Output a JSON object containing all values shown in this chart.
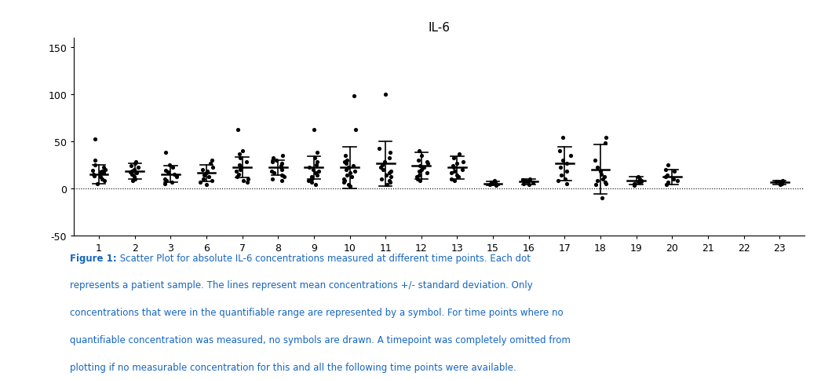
{
  "title": "IL-6",
  "x_labels": [
    "1",
    "2",
    "3",
    "6",
    "7",
    "8",
    "9",
    "10",
    "11",
    "12",
    "13",
    "15",
    "16",
    "17",
    "18",
    "19",
    "20",
    "21",
    "22",
    "23"
  ],
  "ylim": [
    -50,
    160
  ],
  "yticks": [
    -50,
    0,
    50,
    100,
    150
  ],
  "background_color": "#ffffff",
  "dotted_line_y": 0,
  "caption_bold": "Figure 1:",
  "caption_text": " Scatter Plot for absolute IL-6 concentrations measured at different time points. Each dot represents a patient sample. The lines represent mean concentrations +/- standard deviation. Only concentrations that were in the quantifiable range are represented by a symbol. For time points where no quantifiable concentration was measured, no symbols are drawn. A timepoint was completely omitted from plotting if no measurable concentration for this and all the following time points were available.",
  "caption_color": "#1565c0",
  "groups": {
    "1": {
      "mean": 15,
      "sd": 10,
      "dots": [
        5,
        8,
        10,
        12,
        13,
        14,
        15,
        16,
        17,
        18,
        19,
        20,
        22,
        25,
        30,
        52
      ]
    },
    "2": {
      "mean": 18,
      "sd": 8,
      "dots": [
        8,
        10,
        12,
        15,
        16,
        17,
        18,
        19,
        20,
        22,
        24,
        26,
        28
      ]
    },
    "3": {
      "mean": 15,
      "sd": 9,
      "dots": [
        5,
        6,
        8,
        10,
        12,
        13,
        15,
        17,
        19,
        22,
        25,
        38
      ]
    },
    "6": {
      "mean": 16,
      "sd": 9,
      "dots": [
        4,
        6,
        8,
        10,
        12,
        14,
        16,
        18,
        20,
        22,
        26,
        30
      ]
    },
    "7": {
      "mean": 22,
      "sd": 11,
      "dots": [
        6,
        8,
        10,
        12,
        15,
        18,
        20,
        22,
        25,
        28,
        32,
        36,
        40,
        62
      ]
    },
    "8": {
      "mean": 22,
      "sd": 8,
      "dots": [
        8,
        10,
        12,
        14,
        16,
        18,
        20,
        22,
        24,
        26,
        28,
        30,
        32,
        35
      ]
    },
    "9": {
      "mean": 22,
      "sd": 12,
      "dots": [
        4,
        6,
        8,
        10,
        12,
        14,
        16,
        18,
        20,
        22,
        25,
        28,
        32,
        38,
        62
      ]
    },
    "10": {
      "mean": 22,
      "sd": 22,
      "dots": [
        2,
        4,
        6,
        8,
        10,
        12,
        14,
        16,
        18,
        20,
        22,
        24,
        26,
        28,
        30,
        35,
        62,
        98
      ]
    },
    "11": {
      "mean": 26,
      "sd": 24,
      "dots": [
        4,
        6,
        8,
        10,
        12,
        14,
        16,
        18,
        20,
        22,
        25,
        28,
        32,
        38,
        42,
        100
      ]
    },
    "12": {
      "mean": 24,
      "sd": 14,
      "dots": [
        8,
        10,
        12,
        14,
        16,
        18,
        20,
        22,
        24,
        26,
        28,
        30,
        35,
        40
      ]
    },
    "13": {
      "mean": 22,
      "sd": 12,
      "dots": [
        8,
        10,
        12,
        14,
        16,
        18,
        20,
        22,
        24,
        26,
        28,
        32,
        36
      ]
    },
    "15": {
      "mean": 5,
      "sd": 2,
      "dots": [
        3,
        4,
        5,
        6,
        7,
        8
      ]
    },
    "16": {
      "mean": 7,
      "sd": 3,
      "dots": [
        4,
        5,
        6,
        7,
        8,
        9,
        10
      ]
    },
    "17": {
      "mean": 26,
      "sd": 18,
      "dots": [
        5,
        8,
        10,
        14,
        18,
        22,
        26,
        30,
        35,
        40,
        54
      ]
    },
    "18": {
      "mean": 20,
      "sd": 26,
      "dots": [
        4,
        5,
        6,
        8,
        10,
        12,
        15,
        18,
        22,
        30,
        48,
        54,
        -10
      ]
    },
    "19": {
      "mean": 8,
      "sd": 4,
      "dots": [
        3,
        5,
        6,
        7,
        8,
        10,
        12
      ]
    },
    "20": {
      "mean": 12,
      "sd": 8,
      "dots": [
        4,
        6,
        8,
        10,
        12,
        14,
        18,
        20,
        25
      ]
    },
    "21": {
      "mean": null,
      "sd": null,
      "dots": []
    },
    "22": {
      "mean": null,
      "sd": null,
      "dots": []
    },
    "23": {
      "mean": 6,
      "sd": 2,
      "dots": [
        4,
        5,
        6,
        7,
        8
      ]
    }
  }
}
